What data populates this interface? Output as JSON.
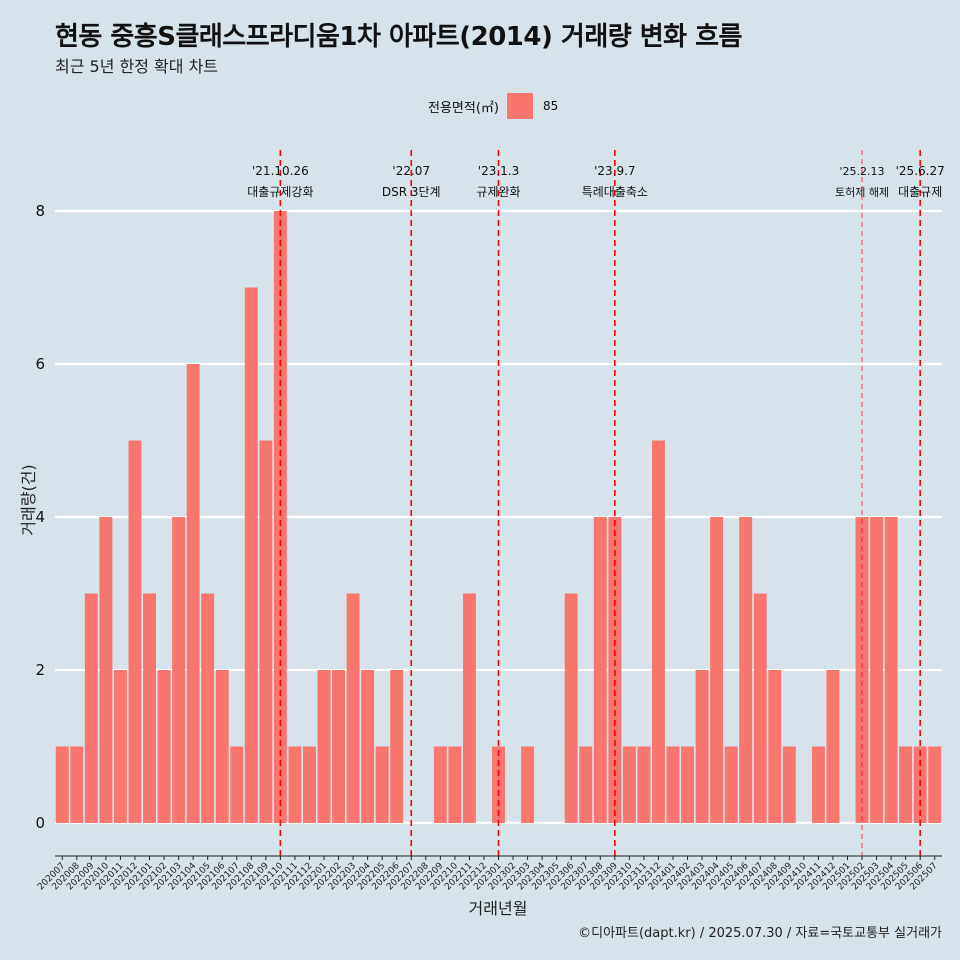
{
  "title": "현동 중흥S클래스프라디움1차 아파트(2014) 거래량 변화 흐름",
  "subtitle": "최근 5년 한정 확대 차트",
  "caption": "©디아파트(dapt.kr) / 2025.07.30 / 자료=국토교통부 실거래가",
  "legend": {
    "title": "전용면적(㎡)",
    "items": [
      {
        "label": "85",
        "color": "#f8766d"
      }
    ]
  },
  "colors": {
    "bar": "#f8766d",
    "background": "#d7e3ea",
    "grid": "#ffffff",
    "event_line": "#ff0000"
  },
  "chart_data": {
    "type": "bar",
    "xlabel": "거래년월",
    "ylabel": "거래량(건)",
    "ylim": [
      0,
      8
    ],
    "yticks": [
      0,
      2,
      4,
      6,
      8
    ],
    "grid": true,
    "legend_position": "top",
    "categories": [
      "202007",
      "202008",
      "202009",
      "202010",
      "202011",
      "202012",
      "202101",
      "202102",
      "202103",
      "202104",
      "202105",
      "202106",
      "202107",
      "202108",
      "202109",
      "202110",
      "202111",
      "202112",
      "202201",
      "202202",
      "202203",
      "202204",
      "202205",
      "202206",
      "202207",
      "202208",
      "202209",
      "202210",
      "202211",
      "202212",
      "202301",
      "202302",
      "202303",
      "202304",
      "202305",
      "202306",
      "202307",
      "202308",
      "202309",
      "202310",
      "202311",
      "202312",
      "202401",
      "202402",
      "202403",
      "202404",
      "202405",
      "202406",
      "202407",
      "202408",
      "202409",
      "202410",
      "202411",
      "202412",
      "202501",
      "202502",
      "202503",
      "202504",
      "202505",
      "202506",
      "202507"
    ],
    "series": [
      {
        "name": "85",
        "values": [
          1,
          1,
          3,
          4,
          2,
          5,
          3,
          2,
          4,
          6,
          3,
          2,
          1,
          7,
          5,
          8,
          1,
          1,
          2,
          2,
          3,
          2,
          1,
          2,
          0,
          0,
          1,
          1,
          3,
          0,
          1,
          0,
          1,
          0,
          0,
          3,
          1,
          4,
          4,
          1,
          1,
          5,
          1,
          1,
          2,
          4,
          1,
          4,
          3,
          2,
          1,
          0,
          1,
          2,
          0,
          4,
          4,
          4,
          1,
          1,
          1
        ]
      }
    ],
    "annotations": [
      {
        "date": "'21.10.26",
        "label": "대출규제강화",
        "position": 15.0,
        "style": "dashed"
      },
      {
        "date": "'22.07",
        "label": "DSR 3단계",
        "position": 24.0,
        "style": "dashed"
      },
      {
        "date": "'23.1.3",
        "label": "규제완화",
        "position": 30.0,
        "style": "dashed"
      },
      {
        "date": "'23.9.7",
        "label": "특례대출축소",
        "position": 38.0,
        "style": "dashed"
      },
      {
        "date": "'25.2.13",
        "label": "토허제 해제",
        "position": 55.0,
        "style": "dashed-thin"
      },
      {
        "date": "'25.6.27",
        "label": "대출규제",
        "position": 59.0,
        "style": "dashed"
      }
    ]
  }
}
